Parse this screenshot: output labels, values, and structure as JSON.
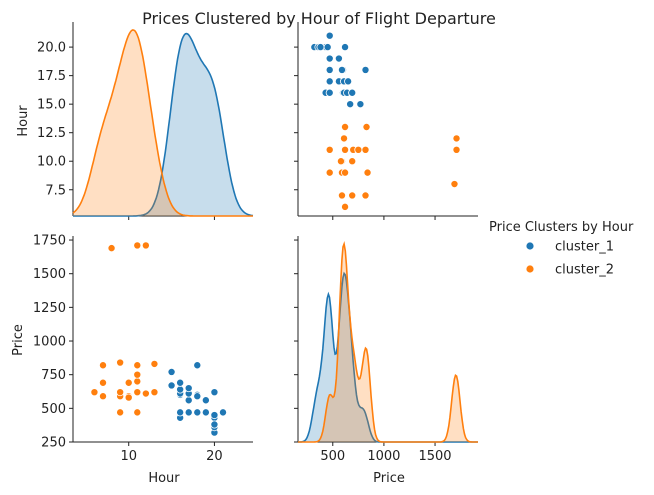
{
  "chart_data": {
    "type": "scatter",
    "title": "Prices Clustered by Hour of Flight Departure",
    "variables": [
      "Hour",
      "Price"
    ],
    "axis_labels": {
      "x_left": "Hour",
      "x_right": "Price",
      "y_top": "Hour",
      "y_bottom": "Price"
    },
    "ranges": {
      "Hour": [
        3.5,
        24.5
      ],
      "Price": [
        160,
        1920
      ],
      "Hour_y": [
        5.2,
        22.2
      ],
      "Price_y": [
        250,
        1780
      ]
    },
    "ticks": {
      "Hour_x": [
        10,
        20
      ],
      "Price_x": [
        500,
        1000,
        1500
      ],
      "Hour_y": [
        7.5,
        10.0,
        12.5,
        15.0,
        17.5,
        20.0
      ],
      "Price_y": [
        250,
        500,
        750,
        1000,
        1250,
        1500,
        1750
      ]
    },
    "tick_labels": {
      "Hour_x": [
        "10",
        "20"
      ],
      "Price_x": [
        "500",
        "1000",
        "1500"
      ],
      "Hour_y": [
        "7.5",
        "10.0",
        "12.5",
        "15.0",
        "17.5",
        "20.0"
      ],
      "Price_y": [
        "250",
        "500",
        "750",
        "1000",
        "1250",
        "1500",
        "1750"
      ]
    },
    "legend": {
      "title": "Price Clusters by Hour",
      "position": "right",
      "entries": [
        {
          "name": "cluster_1",
          "color": "#1f77b4"
        },
        {
          "name": "cluster_2",
          "color": "#ff7f0e"
        }
      ]
    },
    "series": [
      {
        "name": "cluster_1",
        "color": "#1f77b4",
        "points": [
          {
            "hour": 21,
            "price": 470
          },
          {
            "hour": 20,
            "price": 320
          },
          {
            "hour": 20,
            "price": 360
          },
          {
            "hour": 20,
            "price": 430
          },
          {
            "hour": 20,
            "price": 620
          },
          {
            "hour": 19,
            "price": 470
          },
          {
            "hour": 18,
            "price": 820
          },
          {
            "hour": 18,
            "price": 470
          },
          {
            "hour": 18,
            "price": 600
          },
          {
            "hour": 17,
            "price": 470
          },
          {
            "hour": 17,
            "price": 560
          },
          {
            "hour": 17,
            "price": 610
          },
          {
            "hour": 17,
            "price": 650
          },
          {
            "hour": 16,
            "price": 430
          },
          {
            "hour": 16,
            "price": 470
          },
          {
            "hour": 16,
            "price": 600
          },
          {
            "hour": 16,
            "price": 610
          },
          {
            "hour": 16,
            "price": 640
          },
          {
            "hour": 16,
            "price": 690
          },
          {
            "hour": 15,
            "price": 670
          },
          {
            "hour": 15,
            "price": 770
          },
          {
            "hour": 20,
            "price": 380
          },
          {
            "hour": 20,
            "price": 450
          },
          {
            "hour": 19,
            "price": 560
          },
          {
            "hour": 18,
            "price": 590
          },
          {
            "hour": 16,
            "price": 690
          }
        ]
      },
      {
        "name": "cluster_2",
        "color": "#ff7f0e",
        "points": [
          {
            "hour": 6,
            "price": 620
          },
          {
            "hour": 7,
            "price": 590
          },
          {
            "hour": 7,
            "price": 690
          },
          {
            "hour": 7,
            "price": 820
          },
          {
            "hour": 8,
            "price": 1690
          },
          {
            "hour": 9,
            "price": 470
          },
          {
            "hour": 9,
            "price": 590
          },
          {
            "hour": 9,
            "price": 620
          },
          {
            "hour": 9,
            "price": 840
          },
          {
            "hour": 10,
            "price": 590
          },
          {
            "hour": 10,
            "price": 690
          },
          {
            "hour": 11,
            "price": 470
          },
          {
            "hour": 11,
            "price": 620
          },
          {
            "hour": 11,
            "price": 700
          },
          {
            "hour": 11,
            "price": 750
          },
          {
            "hour": 11,
            "price": 820
          },
          {
            "hour": 11,
            "price": 1710
          },
          {
            "hour": 12,
            "price": 1710
          },
          {
            "hour": 13,
            "price": 620
          },
          {
            "hour": 13,
            "price": 830
          },
          {
            "hour": 12,
            "price": 610
          },
          {
            "hour": 10,
            "price": 580
          }
        ]
      }
    ]
  }
}
